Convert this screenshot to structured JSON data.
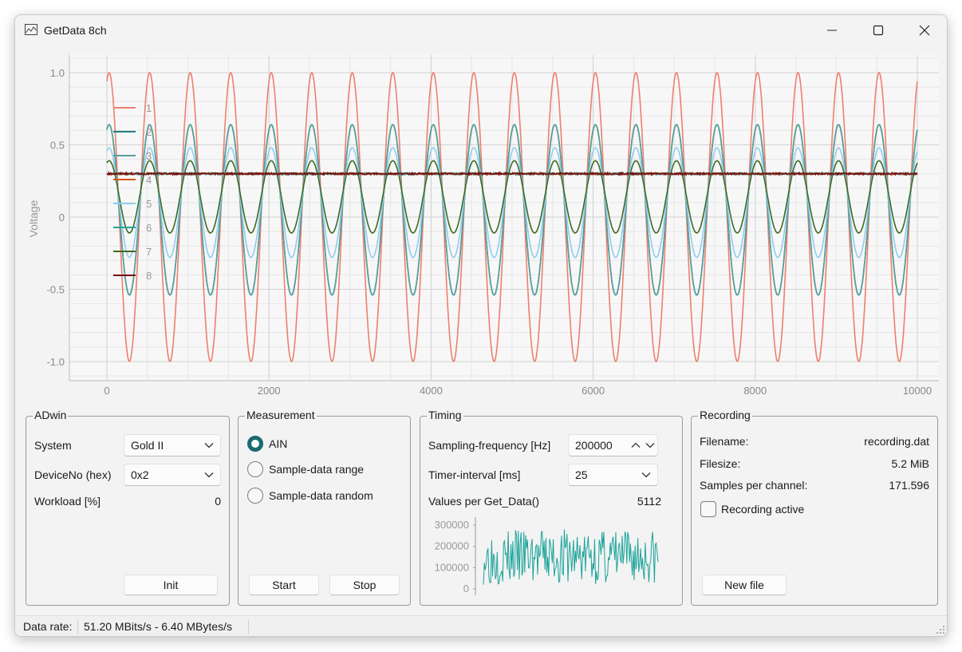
{
  "window": {
    "title": "GetData 8ch"
  },
  "plot": {
    "ylabel": "Voltage",
    "yticks": [
      "1.0",
      "0.5",
      "0",
      "-0.5",
      "-1.0"
    ],
    "xticks": [
      "0",
      "2000",
      "4000",
      "6000",
      "8000",
      "10000"
    ],
    "legend": [
      "1",
      "2",
      "3",
      "4",
      "5",
      "6",
      "7",
      "8"
    ]
  },
  "chart_data": {
    "type": "line",
    "xlabel": "",
    "ylabel": "Voltage",
    "xlim": [
      0,
      10000
    ],
    "ylim": [
      -1.0,
      1.0
    ],
    "grid": true,
    "legend_placement": "top-left",
    "series_note_cycles": 20,
    "series": [
      {
        "name": "1",
        "color": "#ee7f6e",
        "kind": "sine",
        "center": 0.0,
        "amplitude": 1.0,
        "phase_deg": 70
      },
      {
        "name": "2",
        "color": "#1f7f7a",
        "kind": "sine",
        "center": 0.05,
        "amplitude": 0.59,
        "phase_deg": 70
      },
      {
        "name": "3",
        "color": "#5a9e9a",
        "kind": "sine",
        "center": 0.05,
        "amplitude": 0.59,
        "phase_deg": 70
      },
      {
        "name": "4",
        "color": "#d4561f",
        "kind": "flat",
        "center": 0.3
      },
      {
        "name": "5",
        "color": "#8ecdf0",
        "kind": "sine",
        "center": 0.1,
        "amplitude": 0.38,
        "phase_deg": 70
      },
      {
        "name": "6",
        "color": "#2aa198",
        "kind": "flat",
        "center": 0.3
      },
      {
        "name": "7",
        "color": "#3f6a22",
        "kind": "sine",
        "center": 0.14,
        "amplitude": 0.25,
        "phase_deg": 70
      },
      {
        "name": "8",
        "color": "#7a1010",
        "kind": "flat",
        "center": 0.3
      }
    ]
  },
  "adwin": {
    "title": "ADwin",
    "system_label": "System",
    "system_value": "Gold II",
    "device_label": "DeviceNo (hex)",
    "device_value": "0x2",
    "workload_label": "Workload [%]",
    "workload_value": "0",
    "init_label": "Init"
  },
  "measurement": {
    "title": "Measurement",
    "options": [
      "AIN",
      "Sample-data range",
      "Sample-data random"
    ],
    "selected": 0,
    "start_label": "Start",
    "stop_label": "Stop"
  },
  "timing": {
    "title": "Timing",
    "freq_label": "Sampling-frequency [Hz]",
    "freq_value": "200000",
    "timer_label": "Timer-interval [ms]",
    "timer_value": "25",
    "values_label": "Values per Get_Data()",
    "values_value": "5112",
    "mini_yticks": [
      "300000",
      "200000",
      "100000",
      "0"
    ],
    "mini_color": "#1aa39a"
  },
  "recording": {
    "title": "Recording",
    "filename_label": "Filename:",
    "filename_value": "recording.dat",
    "filesize_label": "Filesize:",
    "filesize_value": "5.2 MiB",
    "samples_label": "Samples per channel:",
    "samples_value": "171.596",
    "active_label": "Recording active",
    "newfile_label": "New file"
  },
  "status": {
    "label": "Data rate:",
    "value": "51.20 MBits/s - 6.40 MBytes/s"
  }
}
